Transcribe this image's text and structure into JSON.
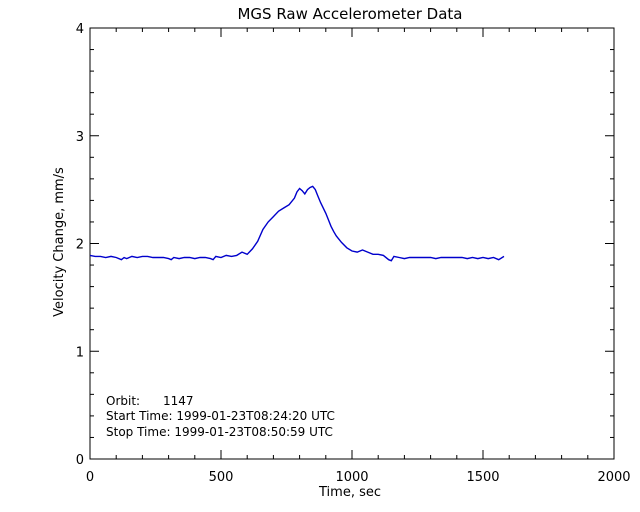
{
  "chart_data": {
    "type": "line",
    "title": "MGS Raw Accelerometer Data",
    "xlabel": "Time, sec",
    "ylabel": "Velocity Change, mm/s",
    "xlim": [
      0,
      2000
    ],
    "ylim": [
      0,
      4
    ],
    "x_major_ticks": [
      0,
      500,
      1000,
      1500,
      2000
    ],
    "y_major_ticks": [
      0,
      1,
      2,
      3,
      4
    ],
    "grid": false,
    "annotations": [
      "Orbit:      1147",
      "Start Time: 1999-01-23T08:24:20 UTC",
      "Stop Time: 1999-01-23T08:50:59 UTC"
    ],
    "series": [
      {
        "color": "#0000cc",
        "x": [
          0,
          20,
          40,
          60,
          80,
          100,
          120,
          130,
          140,
          160,
          180,
          200,
          220,
          240,
          260,
          280,
          300,
          310,
          320,
          340,
          360,
          380,
          400,
          420,
          440,
          460,
          470,
          480,
          500,
          520,
          540,
          560,
          580,
          600,
          620,
          640,
          660,
          680,
          700,
          720,
          740,
          760,
          780,
          790,
          800,
          810,
          820,
          830,
          840,
          850,
          860,
          870,
          880,
          890,
          900,
          910,
          920,
          930,
          940,
          960,
          980,
          1000,
          1020,
          1040,
          1060,
          1080,
          1100,
          1120,
          1140,
          1150,
          1160,
          1180,
          1200,
          1220,
          1240,
          1260,
          1280,
          1300,
          1320,
          1340,
          1360,
          1380,
          1400,
          1420,
          1440,
          1460,
          1480,
          1500,
          1520,
          1540,
          1560,
          1580
        ],
        "y": [
          1.89,
          1.88,
          1.88,
          1.87,
          1.88,
          1.87,
          1.85,
          1.87,
          1.86,
          1.88,
          1.87,
          1.88,
          1.88,
          1.87,
          1.87,
          1.87,
          1.86,
          1.85,
          1.87,
          1.86,
          1.87,
          1.87,
          1.86,
          1.87,
          1.87,
          1.86,
          1.85,
          1.88,
          1.87,
          1.89,
          1.88,
          1.89,
          1.92,
          1.9,
          1.95,
          2.02,
          2.13,
          2.2,
          2.25,
          2.3,
          2.33,
          2.36,
          2.42,
          2.48,
          2.51,
          2.49,
          2.46,
          2.5,
          2.52,
          2.53,
          2.5,
          2.44,
          2.38,
          2.33,
          2.28,
          2.22,
          2.16,
          2.11,
          2.07,
          2.01,
          1.96,
          1.93,
          1.92,
          1.94,
          1.92,
          1.9,
          1.9,
          1.89,
          1.85,
          1.84,
          1.88,
          1.87,
          1.86,
          1.87,
          1.87,
          1.87,
          1.87,
          1.87,
          1.86,
          1.87,
          1.87,
          1.87,
          1.87,
          1.87,
          1.86,
          1.87,
          1.86,
          1.87,
          1.86,
          1.87,
          1.85,
          1.88
        ]
      }
    ]
  }
}
